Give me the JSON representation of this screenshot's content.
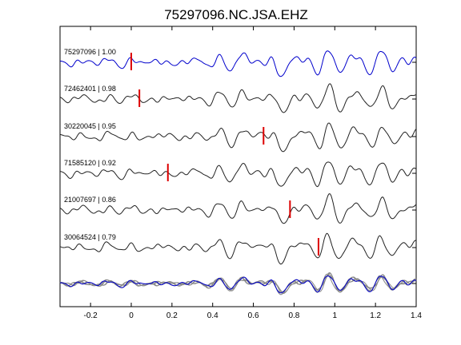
{
  "chart_data": {
    "type": "line",
    "title": "75297096.NC.JSA.EHZ",
    "xlabel": "",
    "ylabel": "",
    "xlim": [
      -0.35,
      1.4
    ],
    "x_ticks": [
      -0.2,
      0,
      0.2,
      0.4,
      0.6,
      0.8,
      1,
      1.2,
      1.4
    ],
    "x_tick_labels": [
      "-0.2",
      "0",
      "0.2",
      "0.4",
      "0.6",
      "0.8",
      "1",
      "1.2",
      "1.4"
    ],
    "grid": false,
    "colors": {
      "reference": "#0000cc",
      "trace": "#222222",
      "stack": "#888888",
      "pick": "#dd0000"
    },
    "traces": [
      {
        "label": "75297096 | 1.00",
        "pick": 0.0,
        "reference": true
      },
      {
        "label": "72462401 | 0.98",
        "pick": 0.04,
        "reference": false
      },
      {
        "label": "30220045 | 0.95",
        "pick": 0.65,
        "reference": false
      },
      {
        "label": "71585120 | 0.92",
        "pick": 0.18,
        "reference": false
      },
      {
        "label": "21007697 | 0.86",
        "pick": 0.78,
        "reference": false
      },
      {
        "label": "30064524 | 0.79",
        "pick": 0.92,
        "reference": false
      }
    ]
  }
}
